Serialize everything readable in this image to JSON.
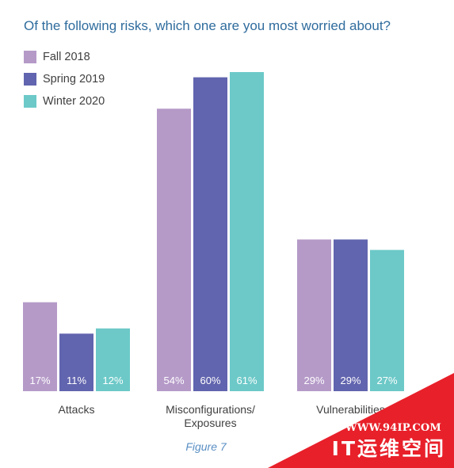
{
  "chart_data": {
    "type": "bar",
    "title": "Of the following risks, which one are you most worried about?",
    "categories": [
      "Attacks",
      "Misconfigurations/\nExposures",
      "Vulnerabilities"
    ],
    "series": [
      {
        "name": "Fall 2018",
        "color": "#b59ac8",
        "values": [
          17,
          54,
          29
        ],
        "labels": [
          "17%",
          "54%",
          "29%"
        ]
      },
      {
        "name": "Spring 2019",
        "color": "#6164ae",
        "values": [
          11,
          60,
          29
        ],
        "labels": [
          "11%",
          "60%",
          "29%"
        ]
      },
      {
        "name": "Winter 2020",
        "color": "#6cc9c8",
        "values": [
          12,
          61,
          27
        ],
        "labels": [
          "12%",
          "61%",
          "27%"
        ]
      }
    ],
    "ylim": [
      0,
      61
    ],
    "grid": false,
    "legend": "top-left"
  },
  "caption": "Figure 7",
  "watermark": {
    "url": "WWW.94IP.COM",
    "name": "IT运维空间",
    "color": "#e8202a"
  }
}
